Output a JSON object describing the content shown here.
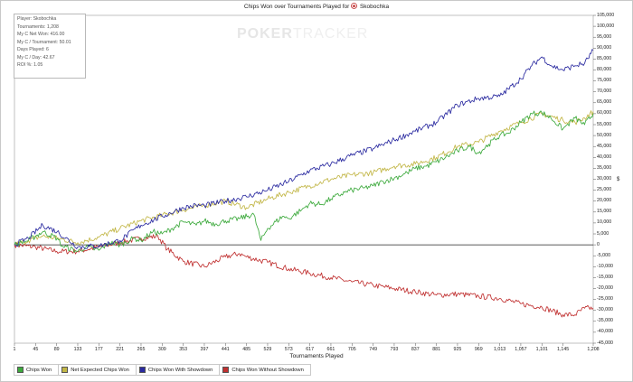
{
  "chart_data": {
    "type": "line",
    "title": "Chips Won over Tournaments Played for",
    "player_name": "Skobochka",
    "xlabel": "Tournaments Played",
    "ylabel": "",
    "xlim": [
      1,
      1208
    ],
    "ylim": [
      -45000,
      105000
    ],
    "x_ticks": [
      "1",
      "45",
      "89",
      "133",
      "177",
      "221",
      "265",
      "309",
      "353",
      "397",
      "441",
      "485",
      "529",
      "573",
      "617",
      "661",
      "705",
      "749",
      "793",
      "837",
      "881",
      "925",
      "969",
      "1,013",
      "1,057",
      "1,101",
      "1,145",
      "1,208"
    ],
    "y_ticks": [
      "105,000",
      "100,000",
      "95,000",
      "90,000",
      "85,000",
      "80,000",
      "75,000",
      "70,000",
      "65,000",
      "60,000",
      "55,000",
      "50,000",
      "45,000",
      "40,000",
      "35,000",
      "30,000",
      "25,000",
      "20,000",
      "15,000",
      "10,000",
      "5,000",
      "0",
      "-5,000",
      "-10,000",
      "-15,000",
      "-20,000",
      "-25,000",
      "-30,000",
      "-35,000",
      "-40,000",
      "-45,000"
    ],
    "y_axis_tag": "$",
    "grid": false,
    "legend_position": "bottom-left",
    "series": [
      {
        "name": "Chips Won",
        "color": "#3daa3d",
        "x": [
          1,
          30,
          60,
          90,
          100,
          133,
          150,
          177,
          200,
          221,
          250,
          265,
          290,
          309,
          330,
          353,
          380,
          397,
          420,
          441,
          470,
          500,
          515,
          529,
          560,
          573,
          600,
          617,
          640,
          661,
          690,
          705,
          730,
          749,
          770,
          793,
          820,
          837,
          860,
          881,
          900,
          925,
          950,
          969,
          990,
          1013,
          1030,
          1057,
          1080,
          1101,
          1120,
          1145,
          1170,
          1190,
          1208
        ],
        "y": [
          0,
          2000,
          6000,
          3000,
          -500,
          -3000,
          -1000,
          -2500,
          1000,
          0,
          3000,
          2000,
          6000,
          5000,
          7500,
          10500,
          9000,
          11000,
          9500,
          11000,
          12000,
          14000,
          2000,
          7500,
          13000,
          12000,
          16000,
          19000,
          18500,
          21000,
          24000,
          25000,
          26000,
          27000,
          29000,
          30500,
          33000,
          35000,
          36000,
          38000,
          40000,
          43000,
          45000,
          42000,
          46000,
          50000,
          51000,
          56000,
          60000,
          60500,
          58000,
          53000,
          58000,
          55000,
          60000
        ]
      },
      {
        "name": "Net Expected Chips Won",
        "color": "#c2b646",
        "x": [
          1,
          30,
          60,
          90,
          133,
          177,
          221,
          265,
          309,
          353,
          397,
          441,
          485,
          529,
          573,
          617,
          661,
          705,
          749,
          793,
          837,
          881,
          925,
          969,
          1013,
          1057,
          1101,
          1145,
          1170,
          1190,
          1208
        ],
        "y": [
          0,
          2000,
          4000,
          3000,
          1000,
          3500,
          7500,
          11000,
          13500,
          16000,
          18000,
          20000,
          17000,
          21000,
          24000,
          27000,
          30000,
          32000,
          33000,
          36000,
          37000,
          40000,
          45000,
          47000,
          52000,
          56000,
          60000,
          57000,
          56000,
          58000,
          61000
        ]
      },
      {
        "name": "Chips Won With Showdown",
        "color": "#2a2aa0",
        "x": [
          1,
          30,
          60,
          90,
          133,
          177,
          221,
          265,
          309,
          353,
          380,
          397,
          441,
          485,
          529,
          573,
          617,
          661,
          705,
          749,
          793,
          837,
          881,
          925,
          969,
          1013,
          1057,
          1080,
          1101,
          1120,
          1145,
          1170,
          1190,
          1208
        ],
        "y": [
          0,
          3000,
          9000,
          6000,
          -1000,
          -500,
          2000,
          9000,
          13000,
          17000,
          18000,
          18000,
          20000,
          22000,
          25000,
          29000,
          34000,
          37000,
          41000,
          44000,
          48000,
          52000,
          56000,
          64000,
          67000,
          68000,
          76000,
          82000,
          86000,
          82000,
          80000,
          82000,
          83000,
          89000
        ]
      },
      {
        "name": "Chips Won Without Showdown",
        "color": "#c03030",
        "x": [
          1,
          45,
          89,
          133,
          177,
          221,
          265,
          300,
          320,
          353,
          397,
          441,
          470,
          485,
          529,
          573,
          617,
          661,
          705,
          749,
          793,
          837,
          881,
          925,
          969,
          1013,
          1057,
          1101,
          1145,
          1170,
          1190,
          1208
        ],
        "y": [
          0,
          -1000,
          -3000,
          -3000,
          -1000,
          1000,
          3000,
          4000,
          -2000,
          -7500,
          -10000,
          -5500,
          -4000,
          -5500,
          -8000,
          -11000,
          -13000,
          -15000,
          -17000,
          -18500,
          -20000,
          -21500,
          -23000,
          -22500,
          -23500,
          -24500,
          -27000,
          -28500,
          -32000,
          -32000,
          -29000,
          -29000
        ]
      }
    ]
  },
  "stats": [
    "Player: Skobochka",
    "Tournaments: 1,208",
    "My C Net Won: 416.00",
    "My C / Tournament: 50.01",
    "Days Played: 6",
    "My C / Day: 42.67",
    "ROI %: 1.05"
  ],
  "watermark": {
    "part_a": "POKER",
    "part_b": "TRACKER"
  },
  "legend": [
    {
      "label": "Chips Won",
      "color": "#3daa3d"
    },
    {
      "label": "Net Expected Chips Won",
      "color": "#c2b646"
    },
    {
      "label": "Chips Won With Showdown",
      "color": "#2a2aa0"
    },
    {
      "label": "Chips Won Without Showdown",
      "color": "#c03030"
    }
  ]
}
